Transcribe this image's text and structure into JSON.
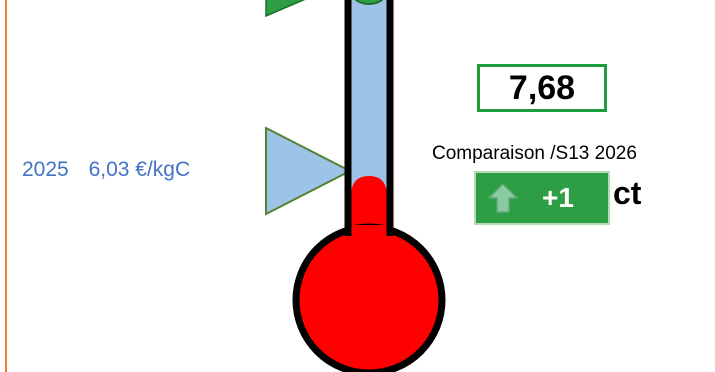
{
  "colors": {
    "thermo_fill": "#FF0000",
    "thermo_tube": "#9DC3E6",
    "marker_green": "#2E9E44",
    "marker_blue": "#9DC3E6",
    "year_text": "#4472C4",
    "border_orange": "#ED7D31"
  },
  "reference": {
    "year": "2025",
    "price": "6,03 €/kgC"
  },
  "current_value": "7,68",
  "comparison": {
    "label": "Comparaison /S13 2026",
    "delta": "+1",
    "unit": "ct",
    "direction_icon": "arrow-up-icon"
  }
}
